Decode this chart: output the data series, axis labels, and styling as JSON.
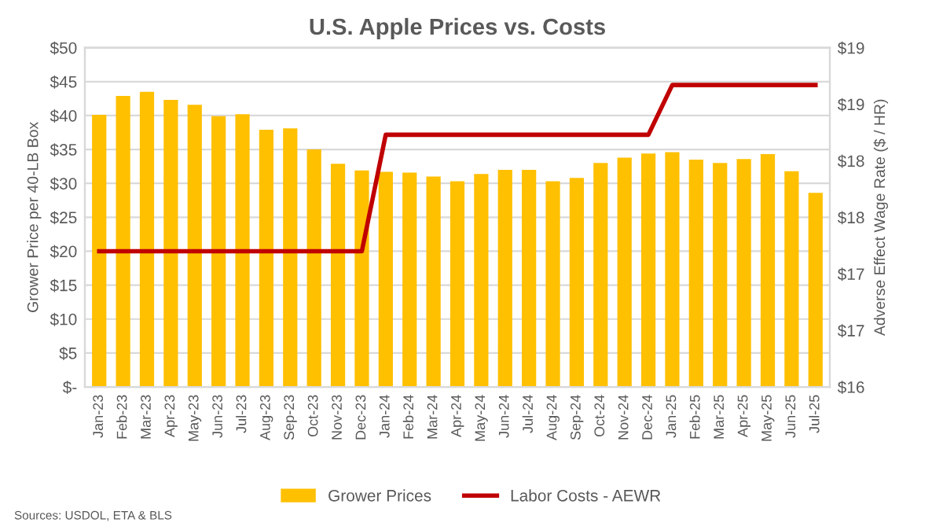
{
  "chart_data": {
    "type": "bar",
    "title": "U.S. Apple Prices vs. Costs",
    "ylabel": "Grower Price per 40-LB Box",
    "y2label": "Adverse Effect Wage Rate ($ / HR)",
    "categories": [
      "Jan-23",
      "Feb-23",
      "Mar-23",
      "Apr-23",
      "May-23",
      "Jun-23",
      "Jul-23",
      "Aug-23",
      "Sep-23",
      "Oct-23",
      "Nov-23",
      "Dec-23",
      "Jan-24",
      "Feb-24",
      "Mar-24",
      "Apr-24",
      "May-24",
      "Jun-24",
      "Jul-24",
      "Aug-24",
      "Sep-24",
      "Oct-24",
      "Nov-24",
      "Dec-24",
      "Jan-25",
      "Feb-25",
      "Mar-25",
      "Apr-25",
      "May-25",
      "Jun-25",
      "Jul-25"
    ],
    "series": [
      {
        "name": "Grower Prices",
        "color": "#ffc000",
        "values": [
          40.1,
          42.9,
          43.5,
          42.3,
          41.6,
          39.9,
          40.2,
          37.9,
          38.1,
          35.0,
          32.9,
          31.9,
          31.7,
          31.6,
          31.0,
          30.3,
          31.4,
          32.0,
          32.0,
          30.3,
          30.8,
          33.0,
          33.8,
          34.4,
          34.6,
          33.5,
          33.0,
          33.6,
          34.3,
          31.8,
          28.6
        ]
      },
      {
        "name": "Labor Costs - AEWR",
        "type": "line",
        "axis": "y2",
        "color": "#c00000",
        "values": [
          17.2,
          17.2,
          17.2,
          17.2,
          17.2,
          17.2,
          17.2,
          17.2,
          17.2,
          17.2,
          17.2,
          17.2,
          18.23,
          18.23,
          18.23,
          18.23,
          18.23,
          18.23,
          18.23,
          18.23,
          18.23,
          18.23,
          18.23,
          18.23,
          18.67,
          18.67,
          18.67,
          18.67,
          18.67,
          18.67,
          18.67
        ]
      }
    ],
    "ylim": [
      0,
      50
    ],
    "yticks": [
      {
        "value": 0,
        "label": "$-"
      },
      {
        "value": 5,
        "label": "$5"
      },
      {
        "value": 10,
        "label": "$10"
      },
      {
        "value": 15,
        "label": "$15"
      },
      {
        "value": 20,
        "label": "$20"
      },
      {
        "value": 25,
        "label": "$25"
      },
      {
        "value": 30,
        "label": "$30"
      },
      {
        "value": 35,
        "label": "$35"
      },
      {
        "value": 40,
        "label": "$40"
      },
      {
        "value": 45,
        "label": "$45"
      },
      {
        "value": 50,
        "label": "$50"
      }
    ],
    "y2lim": [
      16,
      19
    ],
    "y2ticks": [
      {
        "value": 16,
        "label": "$16"
      },
      {
        "value": 16.5,
        "label": "$17"
      },
      {
        "value": 17,
        "label": "$17"
      },
      {
        "value": 17.5,
        "label": "$18"
      },
      {
        "value": 18,
        "label": "$18"
      },
      {
        "value": 18.5,
        "label": "$19"
      },
      {
        "value": 19,
        "label": "$19"
      }
    ],
    "grid": "y",
    "legend": "bottom",
    "marker": "none",
    "line_style": "solid",
    "annotations": [
      "Sources: USDOL, ETA & BLS"
    ]
  }
}
